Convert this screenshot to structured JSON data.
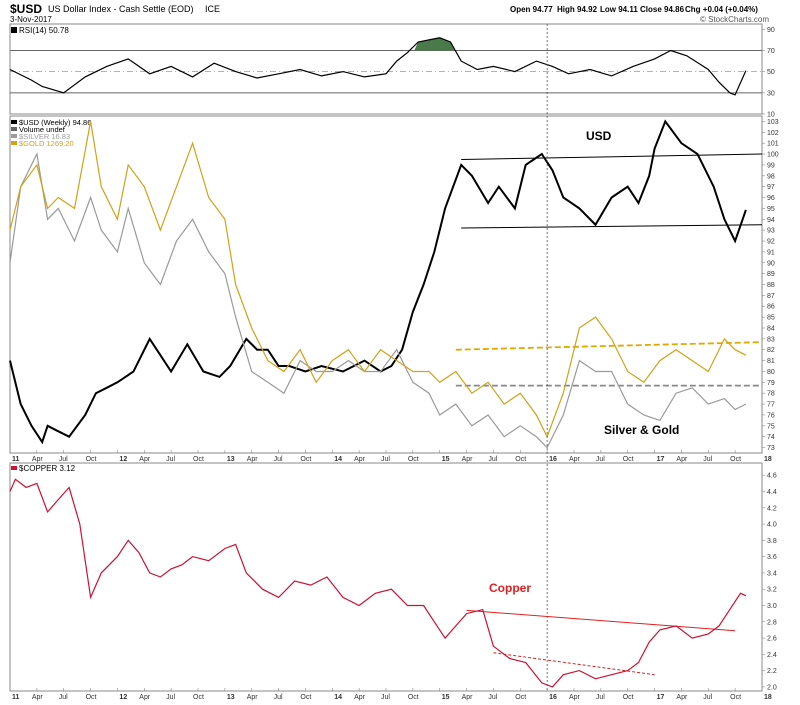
{
  "header": {
    "symbol": "$USD",
    "description": "US Dollar Index - Cash Settle (EOD)",
    "exchange": "ICE",
    "date": "3-Nov-2017",
    "open": "Open 94.77",
    "high": "High 94.92",
    "low": "Low 94.11",
    "close": "Close 94.86",
    "chg": "Chg +0.04 (+0.04%)",
    "watermark": "© StockCharts.com"
  },
  "chart_data": [
    {
      "id": "rsi",
      "type": "line",
      "title": "RSI(14) 50.78",
      "ylim": [
        10,
        95
      ],
      "yticks": [
        10,
        30,
        50,
        70,
        90
      ],
      "reference_lines": [
        30,
        50,
        70
      ],
      "series": [
        {
          "name": "RSI(14)",
          "color": "#000000",
          "x": [
            2011.0,
            2011.2,
            2011.3,
            2011.5,
            2011.7,
            2011.9,
            2012.1,
            2012.3,
            2012.5,
            2012.7,
            2012.9,
            2013.1,
            2013.3,
            2013.5,
            2013.7,
            2013.9,
            2014.1,
            2014.3,
            2014.5,
            2014.6,
            2014.7,
            2014.8,
            2014.9,
            2015.0,
            2015.1,
            2015.2,
            2015.35,
            2015.5,
            2015.7,
            2015.9,
            2016.05,
            2016.2,
            2016.4,
            2016.6,
            2016.8,
            2017.0,
            2017.15,
            2017.3,
            2017.5,
            2017.6,
            2017.7,
            2017.75,
            2017.85
          ],
          "values": [
            52,
            42,
            36,
            30,
            45,
            55,
            62,
            48,
            55,
            45,
            58,
            50,
            44,
            48,
            52,
            46,
            50,
            45,
            48,
            60,
            68,
            78,
            80,
            82,
            78,
            60,
            52,
            55,
            50,
            60,
            55,
            48,
            52,
            46,
            55,
            62,
            70,
            65,
            52,
            40,
            30,
            28,
            51
          ]
        }
      ]
    },
    {
      "id": "usd_metals",
      "type": "line",
      "ylim": [
        72.5,
        103.5
      ],
      "yticks": [
        73,
        74,
        75,
        76,
        77,
        78,
        79,
        80,
        81,
        82,
        83,
        84,
        85,
        86,
        87,
        88,
        89,
        90,
        91,
        92,
        93,
        94,
        95,
        96,
        97,
        98,
        99,
        100,
        101,
        102,
        103
      ],
      "xlim": [
        2011.0,
        2018.0
      ],
      "xticks": [
        "11",
        "Apr",
        "Jul",
        "Oct",
        "12",
        "Apr",
        "Jul",
        "Oct",
        "13",
        "Apr",
        "Jul",
        "Oct",
        "14",
        "Apr",
        "Jul",
        "Oct",
        "15",
        "Apr",
        "Jul",
        "Oct",
        "16",
        "Apr",
        "Jul",
        "Oct",
        "17",
        "Apr",
        "Jul",
        "Oct",
        "18"
      ],
      "legend": [
        "$USD (Weekly) 94.86",
        "Volume undef",
        "$SILVER 16.83",
        "$GOLD 1269.20"
      ],
      "annotations": [
        "USD",
        "Silver & Gold"
      ],
      "series": [
        {
          "name": "$USD (Weekly)",
          "color": "#000000",
          "x": [
            2011.0,
            2011.1,
            2011.2,
            2011.3,
            2011.35,
            2011.45,
            2011.55,
            2011.7,
            2011.8,
            2011.9,
            2012.0,
            2012.15,
            2012.3,
            2012.4,
            2012.5,
            2012.65,
            2012.8,
            2012.95,
            2013.05,
            2013.2,
            2013.3,
            2013.4,
            2013.5,
            2013.6,
            2013.75,
            2013.9,
            2014.1,
            2014.3,
            2014.45,
            2014.55,
            2014.65,
            2014.75,
            2014.85,
            2014.95,
            2015.05,
            2015.2,
            2015.3,
            2015.45,
            2015.55,
            2015.7,
            2015.8,
            2015.95,
            2016.05,
            2016.15,
            2016.3,
            2016.45,
            2016.6,
            2016.75,
            2016.85,
            2016.95,
            2017.0,
            2017.1,
            2017.25,
            2017.4,
            2017.55,
            2017.65,
            2017.75,
            2017.85
          ],
          "values": [
            81,
            77,
            75,
            73.5,
            75,
            74.5,
            74,
            76,
            78,
            78.5,
            79,
            80,
            83,
            81.5,
            80,
            82.5,
            80,
            79.5,
            80.5,
            83,
            82,
            82,
            80.5,
            80.5,
            80,
            80.5,
            80,
            81,
            80,
            80.5,
            82,
            85.5,
            88,
            91,
            95,
            99,
            98,
            95.5,
            97,
            95,
            99,
            100,
            98.5,
            96,
            95,
            93.5,
            96,
            97,
            95.5,
            98,
            100.5,
            103,
            101,
            100,
            97,
            94,
            92,
            94.86
          ]
        },
        {
          "name": "$SILVER",
          "color": "#9a9a9a",
          "x": [
            2011.0,
            2011.1,
            2011.25,
            2011.35,
            2011.45,
            2011.6,
            2011.75,
            2011.85,
            2012.0,
            2012.1,
            2012.25,
            2012.4,
            2012.55,
            2012.7,
            2012.85,
            2013.0,
            2013.1,
            2013.25,
            2013.4,
            2013.55,
            2013.7,
            2013.85,
            2014.0,
            2014.15,
            2014.3,
            2014.45,
            2014.6,
            2014.75,
            2014.9,
            2015.0,
            2015.15,
            2015.3,
            2015.45,
            2015.6,
            2015.75,
            2015.9,
            2016.0,
            2016.15,
            2016.3,
            2016.45,
            2016.6,
            2016.75,
            2016.9,
            2017.05,
            2017.2,
            2017.35,
            2017.5,
            2017.65,
            2017.75,
            2017.85
          ],
          "values": [
            90,
            97,
            100,
            94,
            95,
            92,
            96,
            93,
            91,
            95,
            90,
            88,
            92,
            94,
            91,
            89,
            85,
            80,
            79,
            78,
            81,
            80,
            80,
            81,
            80,
            80,
            82,
            79,
            78,
            76,
            77,
            75,
            76,
            74,
            75,
            74,
            73,
            76,
            81,
            80,
            80,
            77,
            76,
            75.5,
            78,
            78.5,
            77,
            77.5,
            76.5,
            77
          ]
        },
        {
          "name": "$GOLD",
          "color": "#d4a017",
          "x": [
            2011.0,
            2011.1,
            2011.25,
            2011.35,
            2011.45,
            2011.6,
            2011.75,
            2011.85,
            2012.0,
            2012.1,
            2012.25,
            2012.4,
            2012.55,
            2012.7,
            2012.85,
            2013.0,
            2013.1,
            2013.25,
            2013.4,
            2013.55,
            2013.7,
            2013.85,
            2014.0,
            2014.15,
            2014.3,
            2014.45,
            2014.6,
            2014.75,
            2014.9,
            2015.0,
            2015.15,
            2015.3,
            2015.45,
            2015.6,
            2015.75,
            2015.9,
            2016.0,
            2016.15,
            2016.3,
            2016.45,
            2016.6,
            2016.75,
            2016.9,
            2017.05,
            2017.2,
            2017.35,
            2017.5,
            2017.65,
            2017.75,
            2017.85
          ],
          "values": [
            93,
            97,
            99,
            95,
            96,
            95,
            103,
            97,
            94,
            99,
            97,
            93,
            97,
            101,
            96,
            94,
            88,
            84,
            81,
            80,
            82,
            79,
            81,
            82,
            80,
            82,
            81,
            80,
            80,
            79,
            80,
            78,
            79,
            77,
            78,
            76,
            74,
            78,
            84,
            85,
            83,
            80,
            79,
            81,
            82,
            81,
            80,
            83,
            82,
            81.5
          ]
        }
      ]
    },
    {
      "id": "copper",
      "type": "line",
      "title": "$COPPER 3.12",
      "ylim": [
        1.95,
        4.75
      ],
      "yticks": [
        2.0,
        2.2,
        2.4,
        2.6,
        2.8,
        3.0,
        3.2,
        3.4,
        3.6,
        3.8,
        4.0,
        4.2,
        4.4,
        4.6
      ],
      "xlim": [
        2011.0,
        2018.0
      ],
      "xticks": [
        "11",
        "Apr",
        "Jul",
        "Oct",
        "12",
        "Apr",
        "Jul",
        "Oct",
        "13",
        "Apr",
        "Jul",
        "Oct",
        "14",
        "Apr",
        "Jul",
        "Oct",
        "15",
        "Apr",
        "Jul",
        "Oct",
        "16",
        "Apr",
        "Jul",
        "Oct",
        "17",
        "Apr",
        "Jul",
        "Oct",
        "18"
      ],
      "annotations": [
        "Copper"
      ],
      "series": [
        {
          "name": "$COPPER",
          "color": "#cc1133",
          "x": [
            2011.0,
            2011.05,
            2011.15,
            2011.25,
            2011.35,
            2011.45,
            2011.55,
            2011.65,
            2011.75,
            2011.85,
            2012.0,
            2012.1,
            2012.2,
            2012.3,
            2012.4,
            2012.5,
            2012.6,
            2012.7,
            2012.85,
            2013.0,
            2013.1,
            2013.2,
            2013.35,
            2013.5,
            2013.65,
            2013.8,
            2013.95,
            2014.1,
            2014.25,
            2014.4,
            2014.55,
            2014.7,
            2014.85,
            2014.95,
            2015.05,
            2015.15,
            2015.25,
            2015.4,
            2015.5,
            2015.65,
            2015.8,
            2015.95,
            2016.05,
            2016.15,
            2016.3,
            2016.45,
            2016.6,
            2016.75,
            2016.85,
            2016.95,
            2017.05,
            2017.2,
            2017.35,
            2017.5,
            2017.6,
            2017.7,
            2017.8,
            2017.85
          ],
          "values": [
            4.4,
            4.55,
            4.45,
            4.5,
            4.15,
            4.3,
            4.45,
            4.0,
            3.1,
            3.4,
            3.6,
            3.8,
            3.65,
            3.4,
            3.35,
            3.45,
            3.5,
            3.6,
            3.55,
            3.7,
            3.75,
            3.4,
            3.2,
            3.1,
            3.3,
            3.25,
            3.35,
            3.1,
            3.0,
            3.15,
            3.2,
            3.0,
            3.0,
            2.8,
            2.6,
            2.75,
            2.9,
            2.95,
            2.5,
            2.35,
            2.3,
            2.05,
            2.0,
            2.15,
            2.2,
            2.1,
            2.15,
            2.2,
            2.3,
            2.55,
            2.7,
            2.75,
            2.6,
            2.65,
            2.75,
            2.95,
            3.15,
            3.12
          ]
        }
      ]
    }
  ]
}
